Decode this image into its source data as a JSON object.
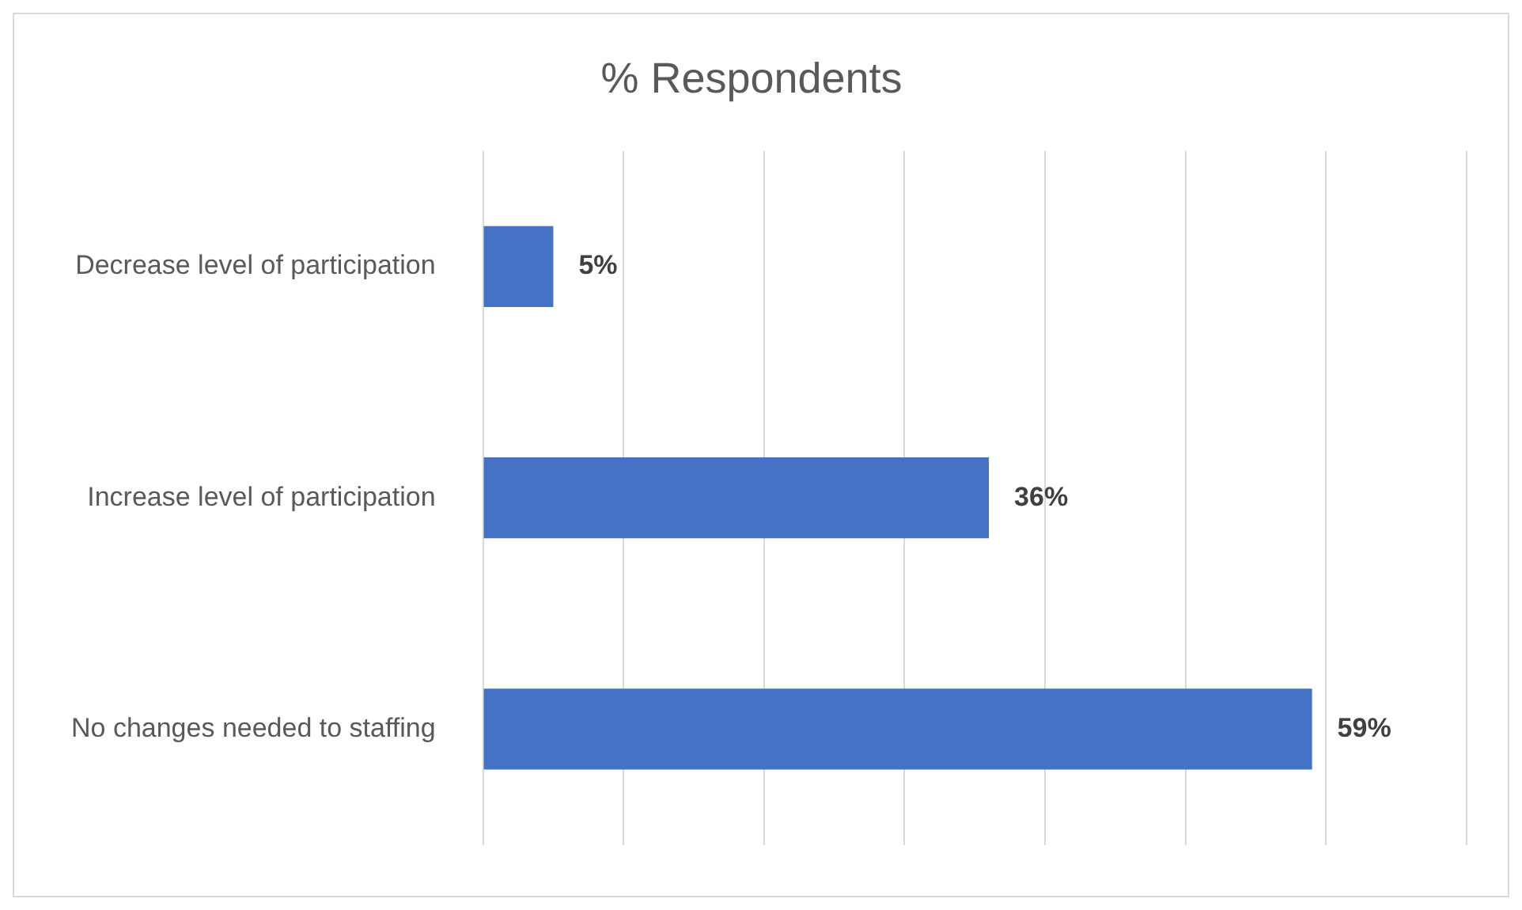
{
  "chart_data": {
    "type": "bar",
    "orientation": "horizontal",
    "title": "% Respondents",
    "categories": [
      "Decrease level of participation",
      "Increase level of participation",
      "No changes needed to staffing"
    ],
    "values": [
      5,
      36,
      59
    ],
    "value_labels": [
      "5%",
      "36%",
      "59%"
    ],
    "color": "#4472c4",
    "xlim": [
      0,
      70
    ],
    "xticks": [
      {
        "value": 0,
        "label": null
      },
      {
        "value": 10,
        "label": null
      },
      {
        "value": 20,
        "label": null
      },
      {
        "value": 30,
        "label": null
      },
      {
        "value": 40,
        "label": null
      },
      {
        "value": 50,
        "label": null
      },
      {
        "value": 60,
        "label": null
      },
      {
        "value": 70,
        "label": null
      }
    ],
    "tick_labels": "y",
    "grid": "x",
    "legend": false
  }
}
